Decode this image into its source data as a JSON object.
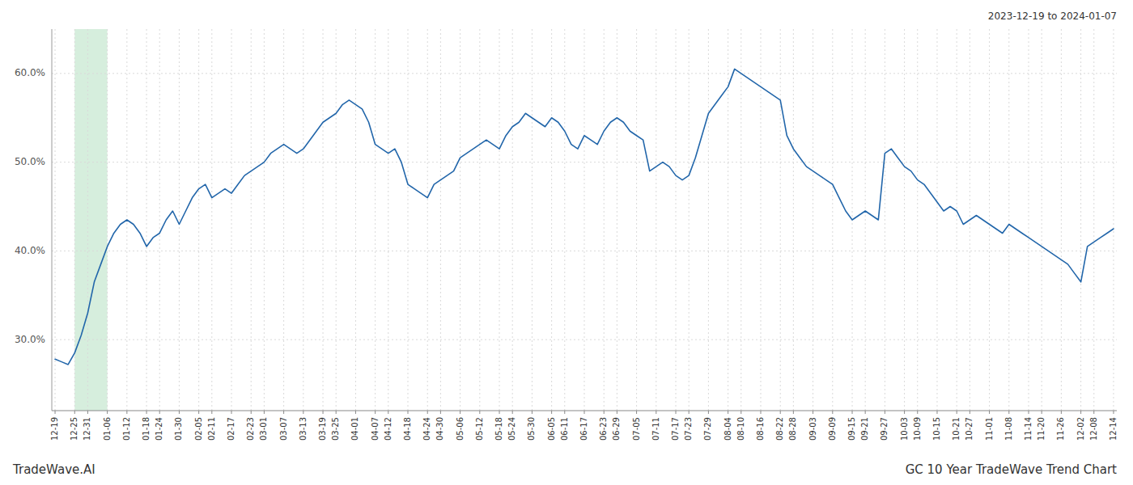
{
  "chart_data": {
    "type": "line",
    "title": "GC 10 Year TradeWave Trend Chart",
    "subtitle": "2023-12-19 to 2024-01-07",
    "annotations": [
      "TradeWave.AI"
    ],
    "color": "#2266aa",
    "grid": true,
    "ylim": [
      22.0,
      65.0
    ],
    "yticks": [
      {
        "value": 30.0,
        "label": "30.0%"
      },
      {
        "value": 40.0,
        "label": "40.0%"
      },
      {
        "value": 50.0,
        "label": "50.0%"
      },
      {
        "value": 60.0,
        "label": "60.0%"
      }
    ],
    "highlight": {
      "start": "12-25",
      "end": "01-06",
      "color": "#d6eedd"
    },
    "categories": [
      "12-19",
      null,
      null,
      "12-25",
      null,
      "12-31",
      null,
      null,
      "01-06",
      null,
      null,
      "01-12",
      null,
      null,
      "01-18",
      null,
      "01-24",
      null,
      null,
      "01-30",
      null,
      null,
      "02-05",
      null,
      "02-11",
      null,
      null,
      "02-17",
      null,
      null,
      "02-23",
      null,
      "03-01",
      null,
      null,
      "03-07",
      null,
      null,
      "03-13",
      null,
      null,
      "03-19",
      null,
      "03-25",
      null,
      null,
      "04-01",
      null,
      null,
      "04-07",
      null,
      "04-12",
      null,
      null,
      "04-18",
      null,
      null,
      "04-24",
      null,
      "04-30",
      null,
      null,
      "05-06",
      null,
      null,
      "05-12",
      null,
      null,
      "05-18",
      null,
      "05-24",
      null,
      null,
      "05-30",
      null,
      null,
      "06-05",
      null,
      "06-11",
      null,
      null,
      "06-17",
      null,
      null,
      "06-23",
      null,
      "06-29",
      null,
      null,
      "07-05",
      null,
      null,
      "07-11",
      null,
      null,
      "07-17",
      null,
      "07-23",
      null,
      null,
      "07-29",
      null,
      null,
      "08-04",
      null,
      "08-10",
      null,
      null,
      "08-16",
      null,
      null,
      "08-22",
      null,
      "08-28",
      null,
      null,
      "09-03",
      null,
      null,
      "09-09",
      null,
      null,
      "09-15",
      null,
      "09-21",
      null,
      null,
      "09-27",
      null,
      null,
      "10-03",
      null,
      "10-09",
      null,
      null,
      "10-15",
      null,
      null,
      "10-21",
      null,
      "10-27",
      null,
      null,
      "11-01",
      null,
      null,
      "11-08",
      null,
      null,
      "11-14",
      null,
      "11-20",
      null,
      null,
      "11-26",
      null,
      null,
      "12-02",
      null,
      "12-08",
      null,
      null,
      "12-14"
    ],
    "values": [
      27.8,
      27.5,
      27.2,
      28.5,
      30.5,
      33.0,
      36.5,
      38.5,
      40.5,
      42.0,
      43.0,
      43.5,
      43.0,
      42.0,
      40.5,
      41.5,
      42.0,
      43.5,
      44.5,
      43.0,
      44.5,
      46.0,
      47.0,
      47.5,
      46.0,
      46.5,
      47.0,
      46.5,
      47.5,
      48.5,
      49.0,
      49.5,
      50.0,
      51.0,
      51.5,
      52.0,
      51.5,
      51.0,
      51.5,
      52.5,
      53.5,
      54.5,
      55.0,
      55.5,
      56.5,
      57.0,
      56.5,
      56.0,
      54.5,
      52.0,
      51.5,
      51.0,
      51.5,
      50.0,
      47.5,
      47.0,
      46.5,
      46.0,
      47.5,
      48.0,
      48.5,
      49.0,
      50.5,
      51.0,
      51.5,
      52.0,
      52.5,
      52.0,
      51.5,
      53.0,
      54.0,
      54.5,
      55.5,
      55.0,
      54.5,
      54.0,
      55.0,
      54.5,
      53.5,
      52.0,
      51.5,
      53.0,
      52.5,
      52.0,
      53.5,
      54.5,
      55.0,
      54.5,
      53.5,
      53.0,
      52.5,
      49.0,
      49.5,
      50.0,
      49.5,
      48.5,
      48.0,
      48.5,
      50.5,
      53.0,
      55.5,
      56.5,
      57.5,
      58.5,
      60.5,
      60.0,
      59.5,
      59.0,
      58.5,
      58.0,
      57.5,
      57.0,
      53.0,
      51.5,
      50.5,
      49.5,
      49.0,
      48.5,
      48.0,
      47.5,
      46.0,
      44.5,
      43.5,
      44.0,
      44.5,
      44.0,
      43.5,
      51.0,
      51.5,
      50.5,
      49.5,
      49.0,
      48.0,
      47.5,
      46.5,
      45.5,
      44.5,
      45.0,
      44.5,
      43.0,
      43.5,
      44.0,
      43.5,
      43.0,
      42.5,
      42.0,
      43.0,
      42.5,
      42.0,
      41.5,
      41.0,
      40.5,
      40.0,
      39.5,
      39.0,
      38.5,
      37.5,
      36.5,
      40.5,
      41.0,
      41.5,
      42.0,
      42.5
    ]
  }
}
